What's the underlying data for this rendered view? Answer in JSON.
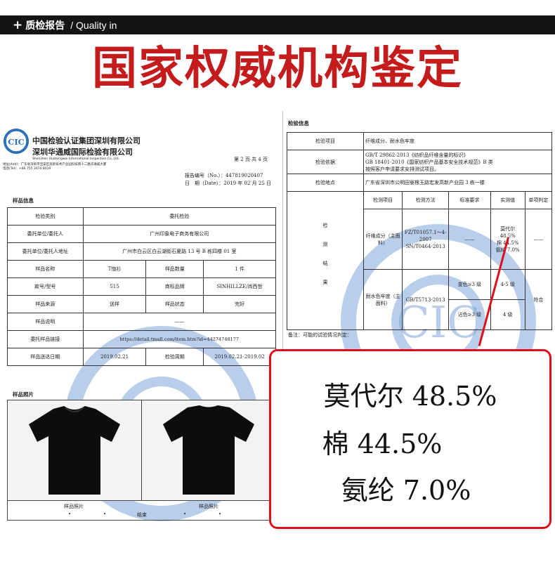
{
  "header": {
    "plus": "+",
    "section_cn": "质检报告",
    "section_en": "/ Quality in",
    "headline": "国家权威机构鉴定"
  },
  "left_doc": {
    "company_cn1": "中国检验认证集团深圳有限公司",
    "company_cn2": "深圳华通威国际检验有限公司",
    "company_en": "Shenzhen Huatongwei International Inspection Co.,Ltd.",
    "company_en2": "Shenzhen Huatongwei International Inspection Co., Ltd.",
    "address": "地址(Add)：广东省深圳市宝安区高新技术产业园科技南十二路华通威大厦",
    "tel": "电话(Tel)：+86 755 2674 8019",
    "page_no": "第 2 页 共 4 页",
    "report_no_label": "报告编号（No.）：",
    "report_no": "447819020407",
    "date_label": "日　期（Date）：",
    "date": "2019 年 02 月 25 日",
    "sample_info_title": "样品信息",
    "rows": {
      "inspect_type_label": "检验类别",
      "inspect_type_value": "委托检验",
      "client_label": "委托单位/委托人",
      "client_value": "广州印象电子商务有限公司",
      "address_label": "委托单位/委托人地址",
      "address_value": "广州市白云区白云湖街石夏路 13 号 B 栋四楼 01 室",
      "sample_name_label": "样品名称",
      "sample_name_value": "T恤衫",
      "qty_label": "样品数量",
      "qty_value": "1 件",
      "model_label": "款号/型号",
      "model_value": "515",
      "brand_label": "商标品牌",
      "brand_value": "SINHILLZE/尚西哲",
      "source_label": "样品来源",
      "source_value": "送样",
      "status_label": "样品状态",
      "status_value": "完好",
      "desc_label": "样品说明",
      "desc_value": "——",
      "link_label": "委托样品链接",
      "link_value": "https://detail.tmall.com/item.htm?id=44274748177",
      "send_date_label": "样品送达日期",
      "send_date_value": "2019.02.21",
      "period_label": "检验周期",
      "period_value": "2019.02.21-2019.02"
    },
    "photo_title": "样品照片",
    "photo_caption": "样品照片",
    "end_text": "结束",
    "dot": "•"
  },
  "right_doc": {
    "title": "检验信息",
    "items_label": "检验项目",
    "items_value": "纤维成分、耐水色牢度",
    "basis_label": "检验依据",
    "basis_value1": "GB/T 29862-2013《纺织品纤维含量的标识》",
    "basis_value2": "GB 18401-2010《国家纺织产品基本安全技术规范》B 类",
    "basis_value3": "按照客户申请要求安排测试项目。",
    "place_label": "检验地点",
    "place_value": "广东省深圳市公明田寮根玉路宏发高新产业园 3 栋一楼",
    "result_label": "检测结果",
    "col_item": "检测项目",
    "col_method": "检测方法",
    "col_standard": "标准要求",
    "col_actual": "实测值",
    "col_verdict": "单项判定",
    "fiber_item": "纤维成分（主面料）",
    "fiber_method1": "FZ/T01057.1～4-2007",
    "fiber_method2": "SN/T0464-2013",
    "fiber_standard": "——",
    "fiber_actual1": "莫代尔 48.5%",
    "fiber_actual2": "棉 44.5%",
    "fiber_actual3": "氨纶 7.0%",
    "fiber_verdict": "——",
    "water_item": "耐水色牢度（主面料）",
    "water_method": "GB/T5713-2013",
    "water_std1": "变色≥3 级",
    "water_act1": "4-5 级",
    "water_std2": "沾色≥3 级",
    "water_act2": "4 级",
    "water_verdict": "符合",
    "note": "备注：可能的试验情况判定："
  },
  "callout": {
    "line1": "莫代尔 48.5%",
    "line2": "棉 44.5%",
    "line3": "氨纶 7.0%"
  },
  "watermark_text": "CIC",
  "colors": {
    "brand_red": "#c41b1c",
    "callout_red": "#e0101a",
    "watermark_blue": "#7ea6d8",
    "topbar_bg": "#141414"
  }
}
